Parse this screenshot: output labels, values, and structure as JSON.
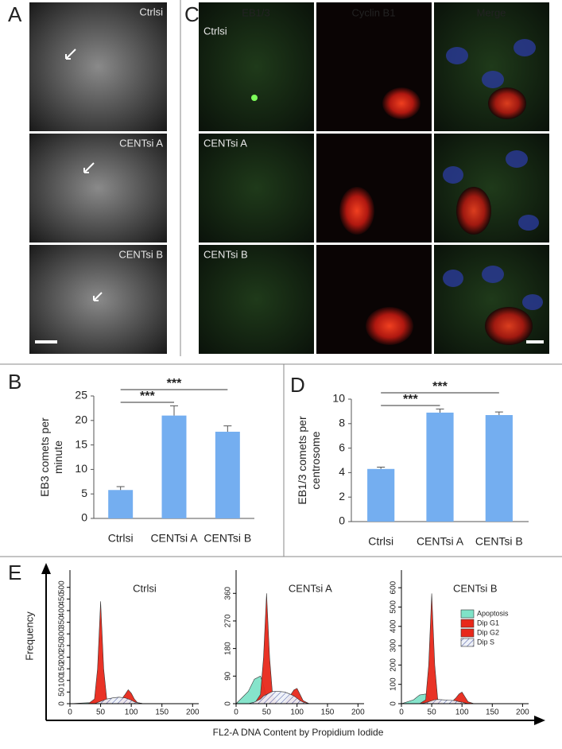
{
  "panels": {
    "A": {
      "letter": "A",
      "labels": [
        "Ctrlsi",
        "CENTsi A",
        "CENTsi B"
      ]
    },
    "C": {
      "letter": "C",
      "columns": [
        "EB1/3",
        "Cyclin B1",
        "Merge"
      ],
      "rows": [
        "Ctrlsi",
        "CENTsi A",
        "CENTsi B"
      ]
    },
    "E": {
      "letter": "E",
      "y_label": "Frequency",
      "x_label": "FL2-A DNA Content by Propidium Iodide"
    }
  },
  "chart_data": [
    {
      "type": "bar",
      "letter": "B",
      "y_label": [
        "EB3 comets per",
        "minute"
      ],
      "categories": [
        "Ctrlsi",
        "CENTsi A",
        "CENTsi B"
      ],
      "values": [
        5.8,
        21,
        17.7
      ],
      "errors": [
        0.7,
        2,
        1.2
      ],
      "color": "#74aef0",
      "ylim": [
        0,
        25
      ],
      "yticks": [
        0,
        5,
        10,
        15,
        20,
        25
      ],
      "significance": [
        "***",
        "***"
      ]
    },
    {
      "type": "bar",
      "letter": "D",
      "y_label": [
        "EB1/3 comets per",
        "centrosome"
      ],
      "categories": [
        "Ctrlsi",
        "CENTsi A",
        "CENTsi B"
      ],
      "values": [
        4.3,
        8.9,
        8.7
      ],
      "errors": [
        0.15,
        0.3,
        0.25
      ],
      "color": "#74aef0",
      "ylim": [
        0,
        10
      ],
      "yticks": [
        0,
        2,
        4,
        6,
        8,
        10
      ],
      "significance": [
        "***",
        "***"
      ]
    },
    {
      "type": "area",
      "title": "Ctrlsi",
      "x": [
        0,
        20,
        30,
        40,
        45,
        50,
        55,
        60,
        70,
        80,
        90,
        95,
        100,
        105,
        110,
        120,
        140,
        200
      ],
      "xlim": [
        0,
        210
      ],
      "xticks": [
        0,
        50,
        100,
        150,
        200
      ],
      "ylim": [
        0,
        540
      ],
      "yticks": [
        0,
        50,
        100,
        150,
        200,
        250,
        300,
        350,
        400,
        450,
        500
      ],
      "series": [
        {
          "name": "Apoptosis",
          "color": "#7fe3c8",
          "values": [
            0,
            3,
            4,
            3,
            2,
            1,
            0,
            0,
            0,
            0,
            0,
            0,
            0,
            0,
            0,
            0,
            0,
            0
          ]
        },
        {
          "name": "Dip G1",
          "color": "#e8281a",
          "values": [
            0,
            0,
            0,
            20,
            150,
            440,
            150,
            20,
            0,
            0,
            0,
            0,
            0,
            0,
            0,
            0,
            0,
            0
          ]
        },
        {
          "name": "Dip G2",
          "color": "#e8281a",
          "values": [
            0,
            0,
            0,
            0,
            0,
            0,
            0,
            0,
            0,
            5,
            40,
            60,
            45,
            20,
            5,
            0,
            0,
            0
          ]
        },
        {
          "name": "Dip S",
          "color": "#3a4a9a",
          "pattern": "hatch",
          "values": [
            0,
            0,
            0,
            0,
            5,
            10,
            15,
            20,
            25,
            28,
            25,
            20,
            15,
            8,
            4,
            0,
            0,
            0
          ]
        }
      ]
    },
    {
      "type": "area",
      "title": "CENTsi A",
      "x": [
        0,
        20,
        30,
        40,
        45,
        50,
        55,
        60,
        70,
        80,
        90,
        95,
        100,
        105,
        110,
        120,
        140,
        200
      ],
      "xlim": [
        0,
        210
      ],
      "xticks": [
        0,
        50,
        100,
        150,
        200
      ],
      "ylim": [
        0,
        410
      ],
      "yticks": [
        0,
        90,
        180,
        270,
        360
      ],
      "series": [
        {
          "name": "Apoptosis",
          "color": "#7fe3c8",
          "values": [
            0,
            40,
            80,
            90,
            60,
            20,
            5,
            0,
            0,
            0,
            0,
            0,
            0,
            0,
            0,
            0,
            0,
            0
          ]
        },
        {
          "name": "Dip G1",
          "color": "#e8281a",
          "values": [
            0,
            0,
            0,
            30,
            150,
            360,
            150,
            25,
            0,
            0,
            0,
            0,
            0,
            0,
            0,
            0,
            0,
            0
          ]
        },
        {
          "name": "Dip G2",
          "color": "#e8281a",
          "values": [
            0,
            0,
            0,
            0,
            0,
            0,
            0,
            0,
            0,
            5,
            30,
            45,
            50,
            30,
            10,
            0,
            0,
            0
          ]
        },
        {
          "name": "Dip S",
          "color": "#3a4a9a",
          "pattern": "hatch",
          "values": [
            0,
            0,
            5,
            15,
            25,
            30,
            35,
            40,
            40,
            38,
            30,
            25,
            18,
            10,
            5,
            0,
            0,
            0
          ]
        }
      ]
    },
    {
      "type": "area",
      "title": "CENTsi B",
      "x": [
        0,
        20,
        30,
        40,
        45,
        50,
        55,
        60,
        70,
        80,
        90,
        95,
        100,
        105,
        110,
        120,
        140,
        200
      ],
      "xlim": [
        0,
        210
      ],
      "xticks": [
        0,
        50,
        100,
        150,
        200
      ],
      "ylim": [
        0,
        650
      ],
      "yticks": [
        0,
        100,
        200,
        300,
        400,
        500,
        600
      ],
      "legend": "right",
      "series": [
        {
          "name": "Apoptosis",
          "color": "#7fe3c8",
          "values": [
            0,
            20,
            45,
            50,
            30,
            10,
            0,
            0,
            0,
            0,
            0,
            0,
            0,
            0,
            0,
            0,
            0,
            0
          ]
        },
        {
          "name": "Dip G1",
          "color": "#e8281a",
          "values": [
            0,
            0,
            0,
            20,
            200,
            570,
            200,
            20,
            0,
            0,
            0,
            0,
            0,
            0,
            0,
            0,
            0,
            0
          ]
        },
        {
          "name": "Dip G2",
          "color": "#e8281a",
          "values": [
            0,
            0,
            0,
            0,
            0,
            0,
            0,
            0,
            0,
            0,
            30,
            50,
            60,
            35,
            10,
            0,
            0,
            0
          ]
        },
        {
          "name": "Dip S",
          "color": "#3a4a9a",
          "pattern": "hatch",
          "values": [
            0,
            0,
            0,
            5,
            10,
            15,
            20,
            22,
            20,
            18,
            15,
            10,
            8,
            4,
            0,
            0,
            0,
            0
          ]
        }
      ]
    }
  ]
}
